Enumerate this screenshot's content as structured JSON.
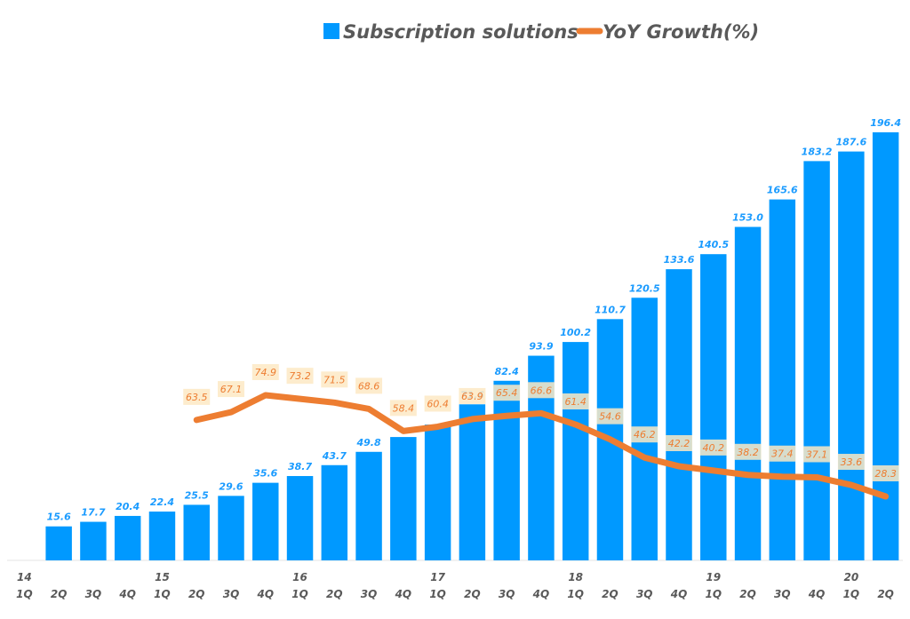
{
  "chart_data": {
    "type": "bar",
    "title": "",
    "xlabel": "",
    "ylabel": "",
    "grid": false,
    "legend_position": "top",
    "legend": [
      {
        "name": "Subscription solutions",
        "kind": "bar",
        "color": "#0099ff"
      },
      {
        "name": "YoY Growth(%)",
        "kind": "line",
        "color": "#ed7d31"
      }
    ],
    "categories": [
      "14 1Q",
      "2Q",
      "3Q",
      "4Q",
      "15 1Q",
      "2Q",
      "3Q",
      "4Q",
      "16 1Q",
      "2Q",
      "3Q",
      "4Q",
      "17 1Q",
      "2Q",
      "3Q",
      "4Q",
      "18 1Q",
      "2Q",
      "3Q",
      "4Q",
      "19 1Q",
      "2Q",
      "3Q",
      "4Q",
      "20 1Q",
      "2Q"
    ],
    "tick_labels": {
      "years": [
        "14",
        "",
        "",
        "",
        "15",
        "",
        "",
        "",
        "16",
        "",
        "",
        "",
        "17",
        "",
        "",
        "",
        "18",
        "",
        "",
        "",
        "19",
        "",
        "",
        "",
        "20",
        ""
      ],
      "quarters": [
        "1Q",
        "2Q",
        "3Q",
        "4Q",
        "1Q",
        "2Q",
        "3Q",
        "4Q",
        "1Q",
        "2Q",
        "3Q",
        "4Q",
        "1Q",
        "2Q",
        "3Q",
        "4Q",
        "1Q",
        "2Q",
        "3Q",
        "4Q",
        "1Q",
        "2Q",
        "3Q",
        "4Q",
        "1Q",
        "2Q"
      ]
    },
    "series": [
      {
        "name": "Subscription solutions",
        "type": "bar",
        "color": "#0099ff",
        "values": [
          null,
          15.6,
          17.7,
          20.4,
          22.4,
          25.5,
          29.6,
          35.6,
          38.7,
          43.7,
          49.8,
          56.6,
          62.3,
          71.6,
          82.4,
          93.9,
          100.2,
          110.7,
          120.5,
          133.6,
          140.5,
          153.0,
          165.6,
          183.2,
          187.6,
          196.4
        ],
        "labels": [
          "",
          "15.6",
          "17.7",
          "20.4",
          "22.4",
          "25.5",
          "29.6",
          "35.6",
          "38.7",
          "43.7",
          "49.8",
          "",
          "",
          "71.6",
          "82.4",
          "93.9",
          "100.2",
          "110.7",
          "120.5",
          "133.6",
          "140.5",
          "153.0",
          "165.6",
          "183.2",
          "187.6",
          "196.4"
        ]
      },
      {
        "name": "YoY Growth(%)",
        "type": "line",
        "color": "#ed7d31",
        "values": [
          null,
          null,
          null,
          null,
          null,
          63.5,
          67.1,
          74.9,
          73.2,
          71.5,
          68.6,
          58.4,
          60.4,
          63.9,
          65.4,
          66.6,
          61.4,
          54.6,
          46.2,
          42.2,
          40.2,
          38.2,
          37.4,
          37.1,
          33.6,
          28.3
        ],
        "labels": [
          "",
          "",
          "",
          "",
          "",
          "63.5",
          "67.1",
          "74.9",
          "73.2",
          "71.5",
          "68.6",
          "58.4",
          "60.4",
          "63.9",
          "65.4",
          "66.6",
          "61.4",
          "54.6",
          "46.2",
          "42.2",
          "40.2",
          "38.2",
          "37.4",
          "37.1",
          "33.6",
          "28.3"
        ]
      }
    ],
    "ylim": [
      0,
      200
    ],
    "line_ylim": [
      -80,
      100
    ]
  }
}
